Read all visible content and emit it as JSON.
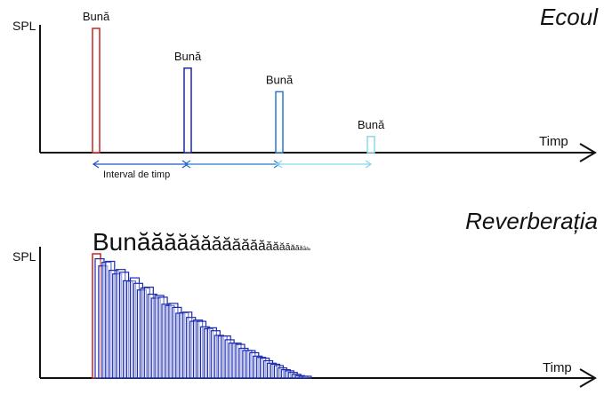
{
  "echo_panel": {
    "title": "Ecoul",
    "y_label": "SPL",
    "x_label": "Timp",
    "interval_label": "Interval de timp",
    "pulses": [
      {
        "label": "Bună",
        "color": "#cc2222",
        "height": 1.0
      },
      {
        "label": "Bună",
        "color": "#1a2a9a",
        "height": 0.68
      },
      {
        "label": "Bună",
        "color": "#2a78c8",
        "height": 0.49
      },
      {
        "label": "Bună",
        "color": "#88d8ee",
        "height": 0.13
      }
    ],
    "interval_colors": [
      "#2255cc",
      "#2a78c8",
      "#88d8ee"
    ]
  },
  "reverb_panel": {
    "title": "Reverberația",
    "y_label": "SPL",
    "x_label": "Timp",
    "stretched_word": {
      "base": "Bun",
      "repeat_char": "ă",
      "repeat_count": 22
    },
    "first_pulse_color": "#cc2222",
    "decay_color": "#1a2ab0"
  }
}
